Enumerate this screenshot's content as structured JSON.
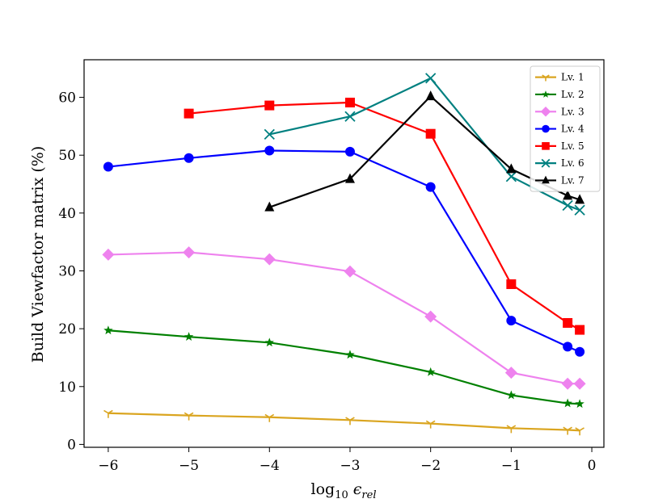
{
  "chart_data": {
    "type": "line",
    "title": "",
    "xlabel": "log",
    "xlabel_sub": "10",
    "xlabel_var": "ϵ",
    "xlabel_var_sub": "rel",
    "ylabel": "Build Viewfactor matrix (%)",
    "xlim": [
      -6.3,
      0.15
    ],
    "ylim": [
      -0.5,
      66.5
    ],
    "xticks": [
      -6,
      -5,
      -4,
      -3,
      -2,
      -1,
      0
    ],
    "xtick_labels": [
      "−6",
      "−5",
      "−4",
      "−3",
      "−2",
      "−1",
      "0"
    ],
    "yticks": [
      0,
      10,
      20,
      30,
      40,
      50,
      60
    ],
    "ytick_labels": [
      "0",
      "10",
      "20",
      "30",
      "40",
      "50",
      "60"
    ],
    "legend_position": "top-right",
    "series": [
      {
        "name": "Lv. 1",
        "color": "#daa520",
        "marker": "tri_down",
        "x": [
          -6,
          -5,
          -4,
          -3,
          -2,
          -1,
          -0.3,
          -0.15
        ],
        "values": [
          5.4,
          5.0,
          4.7,
          4.2,
          3.6,
          2.8,
          2.5,
          2.4
        ]
      },
      {
        "name": "Lv. 2",
        "color": "#008000",
        "marker": "star",
        "x": [
          -6,
          -5,
          -4,
          -3,
          -2,
          -1,
          -0.3,
          -0.15
        ],
        "values": [
          19.7,
          18.6,
          17.6,
          15.5,
          12.5,
          8.5,
          7.1,
          7.0
        ]
      },
      {
        "name": "Lv. 3",
        "color": "#ee82ee",
        "marker": "diamond",
        "x": [
          -6,
          -5,
          -4,
          -3,
          -2,
          -1,
          -0.3,
          -0.15
        ],
        "values": [
          32.8,
          33.2,
          32.0,
          29.9,
          22.1,
          12.4,
          10.5,
          10.5
        ]
      },
      {
        "name": "Lv. 4",
        "color": "#0000ff",
        "marker": "circle",
        "x": [
          -6,
          -5,
          -4,
          -3,
          -2,
          -1,
          -0.3,
          -0.15
        ],
        "values": [
          48.0,
          49.5,
          50.8,
          50.6,
          44.5,
          21.4,
          16.9,
          16.0
        ]
      },
      {
        "name": "Lv. 5",
        "color": "#ff0000",
        "marker": "square",
        "x": [
          -5,
          -4,
          -3,
          -2,
          -1,
          -0.3,
          -0.15
        ],
        "values": [
          57.2,
          58.6,
          59.1,
          53.7,
          27.7,
          21.0,
          19.8
        ]
      },
      {
        "name": "Lv. 6",
        "color": "#008080",
        "marker": "x",
        "x": [
          -4,
          -3,
          -2,
          -1,
          -0.3,
          -0.15
        ],
        "values": [
          53.6,
          56.7,
          63.3,
          46.3,
          41.3,
          40.5
        ]
      },
      {
        "name": "Lv. 7",
        "color": "#000000",
        "marker": "triangle_up",
        "x": [
          -4,
          -3,
          -2,
          -1,
          -0.3,
          -0.15
        ],
        "values": [
          41.0,
          45.9,
          60.2,
          47.6,
          43.0,
          42.3
        ]
      }
    ]
  }
}
